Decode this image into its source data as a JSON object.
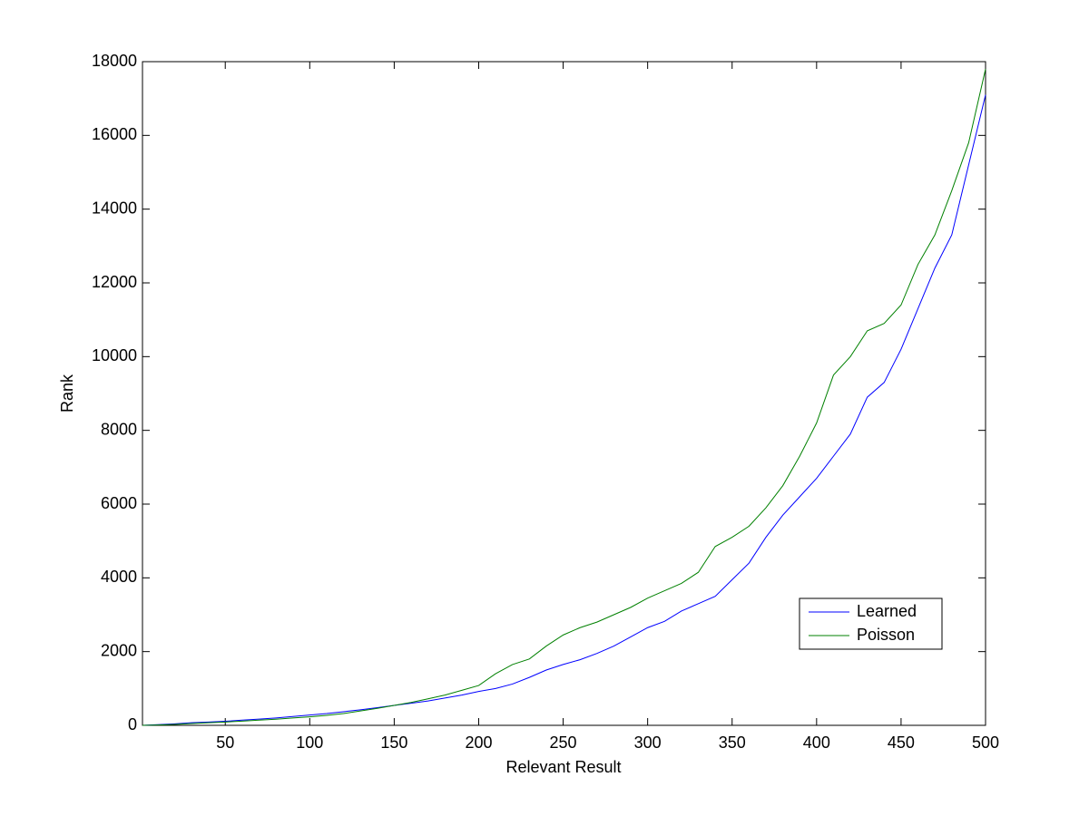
{
  "chart_data": {
    "type": "line",
    "xlabel": "Relevant Result",
    "ylabel": "Rank",
    "x": [
      1,
      10,
      20,
      30,
      40,
      50,
      60,
      70,
      80,
      90,
      100,
      110,
      120,
      130,
      140,
      150,
      160,
      170,
      180,
      190,
      200,
      210,
      220,
      230,
      240,
      250,
      260,
      270,
      280,
      290,
      300,
      310,
      320,
      330,
      340,
      350,
      360,
      370,
      380,
      390,
      400,
      410,
      420,
      430,
      440,
      450,
      460,
      470,
      480,
      490,
      500
    ],
    "series": [
      {
        "name": "Learned",
        "color": "#0000ff",
        "values": [
          0,
          20,
          40,
          70,
          90,
          110,
          140,
          170,
          200,
          240,
          280,
          320,
          370,
          420,
          480,
          540,
          600,
          660,
          740,
          820,
          920,
          1000,
          1120,
          1300,
          1500,
          1650,
          1780,
          1950,
          2150,
          2400,
          2650,
          2820,
          3100,
          3300,
          3500,
          3950,
          4400,
          5100,
          5700,
          6200,
          6700,
          7300,
          7900,
          8900,
          9300,
          10200,
          11300,
          12400,
          13300,
          15200,
          17100
        ]
      },
      {
        "name": "Poisson",
        "color": "#008000",
        "values": [
          0,
          10,
          25,
          50,
          70,
          90,
          115,
          140,
          165,
          200,
          230,
          270,
          320,
          390,
          460,
          540,
          620,
          720,
          820,
          950,
          1080,
          1400,
          1650,
          1800,
          2150,
          2450,
          2650,
          2800,
          3000,
          3200,
          3450,
          3650,
          3850,
          4150,
          4850,
          5100,
          5400,
          5900,
          6500,
          7300,
          8200,
          9500,
          10000,
          10700,
          10900,
          11400,
          12500,
          13300,
          14500,
          15800,
          17800
        ]
      }
    ],
    "xlim": [
      1,
      500
    ],
    "xticks": [
      50,
      100,
      150,
      200,
      250,
      300,
      350,
      400,
      450,
      500
    ],
    "ylim": [
      0,
      18000
    ],
    "yticks": [
      0,
      2000,
      4000,
      6000,
      8000,
      10000,
      12000,
      14000,
      16000,
      18000
    ],
    "grid": false,
    "legend": "lower right"
  }
}
